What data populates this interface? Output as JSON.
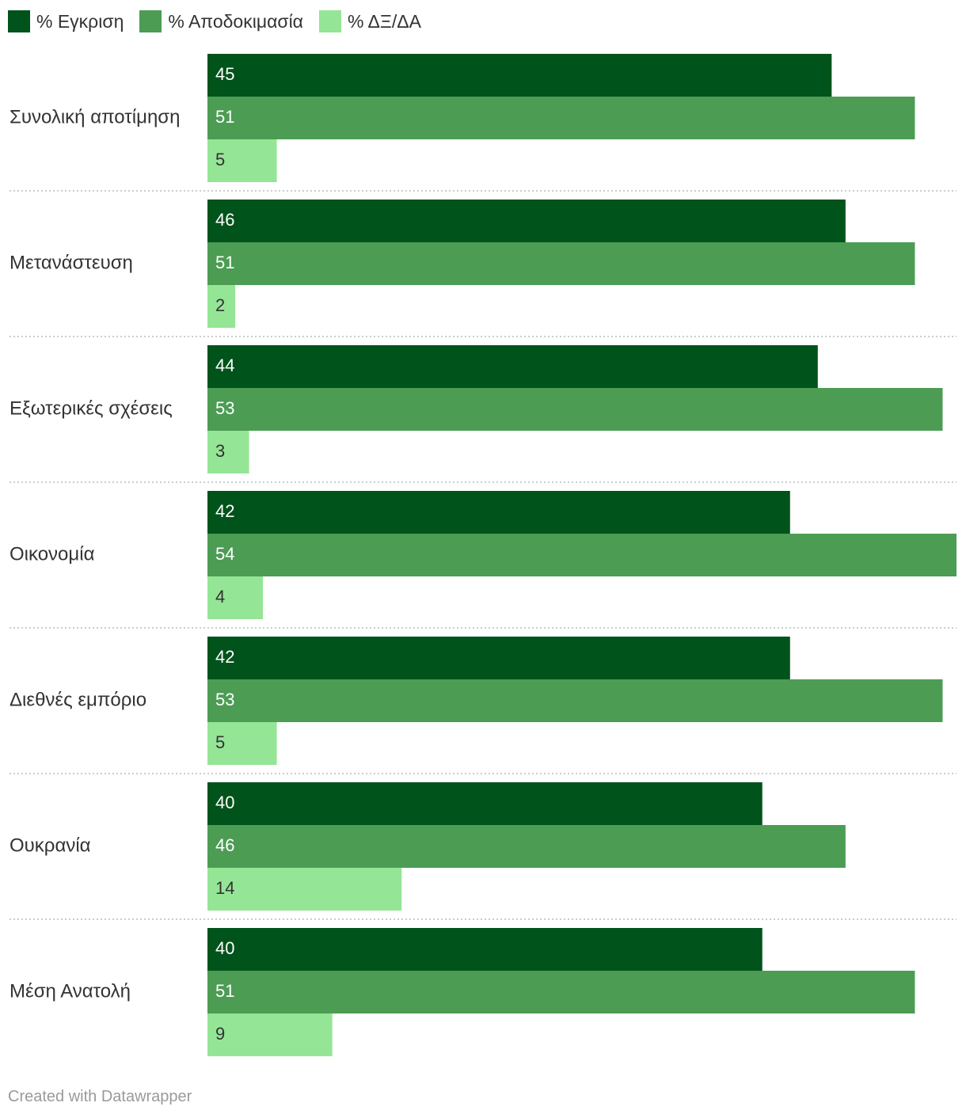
{
  "legend": [
    {
      "label": "% Εγκριση",
      "color": "#00531a"
    },
    {
      "label": "% Αποδοκιμασία",
      "color": "#4c9c54"
    },
    {
      "label": "% ΔΞ/ΔΑ",
      "color": "#95e596"
    }
  ],
  "footer": {
    "credit": "Created with Datawrapper"
  },
  "chart_data": {
    "type": "bar",
    "orientation": "horizontal",
    "grouped": true,
    "legend_position": "top-left",
    "grid": false,
    "xlim": [
      0,
      54
    ],
    "categories": [
      "Συνολική αποτίμηση",
      "Μετανάστευση",
      "Εξωτερικές σχέσεις",
      "Οικονομία",
      "Διεθνές εμπόριο",
      "Ουκρανία",
      "Μέση Ανατολή"
    ],
    "series": [
      {
        "name": "% Εγκριση",
        "color": "#00531a",
        "label_color": "#ffffff",
        "values": [
          45,
          46,
          44,
          42,
          42,
          40,
          40
        ]
      },
      {
        "name": "% Αποδοκιμασία",
        "color": "#4c9c54",
        "label_color": "#ffffff",
        "values": [
          51,
          51,
          53,
          54,
          53,
          46,
          51
        ]
      },
      {
        "name": "% ΔΞ/ΔΑ",
        "color": "#95e596",
        "label_color": "#333333",
        "values": [
          5,
          2,
          3,
          4,
          5,
          14,
          9
        ]
      }
    ]
  }
}
